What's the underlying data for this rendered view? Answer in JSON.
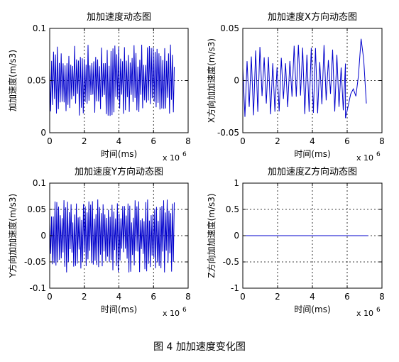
{
  "figure_caption": "图 4  加加速度变化图",
  "x_multiplier": {
    "base": "x 10",
    "exp": "6"
  },
  "colors": {
    "series": "#0000cc",
    "grid": "#000000",
    "axis": "#000000"
  },
  "chart_data": [
    {
      "type": "line",
      "title": "加加速度动态图",
      "xlabel": "时间(ms)",
      "ylabel": "加加速度(m/s3)",
      "xlim": [
        0,
        8
      ],
      "ylim": [
        0,
        0.1
      ],
      "xticks": [
        "0",
        "2",
        "4",
        "6",
        "8"
      ],
      "yticks": [
        "0",
        "0.05",
        "0.1"
      ],
      "grid": true,
      "signal": {
        "t_end": 7.2,
        "mean": 0.05,
        "amplitude": 0.035,
        "samples": 130,
        "pattern": "dense-oscillation"
      }
    },
    {
      "type": "line",
      "title": "加加速度X方向动态图",
      "xlabel": "时间(ms)",
      "ylabel": "X方向加加速度(m/s3)",
      "xlim": [
        0,
        8
      ],
      "ylim": [
        -0.05,
        0.05
      ],
      "xticks": [
        "0",
        "2",
        "4",
        "6",
        "8"
      ],
      "yticks": [
        "-0.05",
        "0",
        "0.05"
      ],
      "grid": true,
      "signal": {
        "t_end": 5.9,
        "mean": 0.0,
        "amplitude": 0.035,
        "samples": 48,
        "pattern": "sparse-oscillation"
      },
      "tail": {
        "x": [
          5.9,
          6.05,
          6.2,
          6.35,
          6.5,
          6.65,
          6.8,
          6.95,
          7.1
        ],
        "y": [
          -0.036,
          -0.025,
          -0.013,
          -0.008,
          -0.015,
          0.005,
          0.04,
          0.02,
          -0.022
        ]
      }
    },
    {
      "type": "line",
      "title": "加加速度Y方向动态图",
      "xlabel": "时间(ms)",
      "ylabel": "Y方向加加速度(m/s3)",
      "xlim": [
        0,
        8
      ],
      "ylim": [
        -0.1,
        0.1
      ],
      "xticks": [
        "0",
        "2",
        "4",
        "6",
        "8"
      ],
      "yticks": [
        "-0.1",
        "-0.05",
        "0",
        "0.05",
        "0.1"
      ],
      "grid": true,
      "signal": {
        "t_end": 7.2,
        "mean": 0.0,
        "amplitude": 0.07,
        "samples": 140,
        "pattern": "dense-oscillation"
      }
    },
    {
      "type": "line",
      "title": "加加速度Z方向动态图",
      "xlabel": "时间(ms)",
      "ylabel": "Z方向加加速度(m/s3)",
      "xlim": [
        0,
        8
      ],
      "ylim": [
        -1,
        1
      ],
      "xticks": [
        "0",
        "2",
        "4",
        "6",
        "8"
      ],
      "yticks": [
        "-1",
        "-0.5",
        "0",
        "0.5",
        "1"
      ],
      "grid": true,
      "x": [
        0,
        7.2
      ],
      "y": [
        0,
        0
      ]
    }
  ]
}
